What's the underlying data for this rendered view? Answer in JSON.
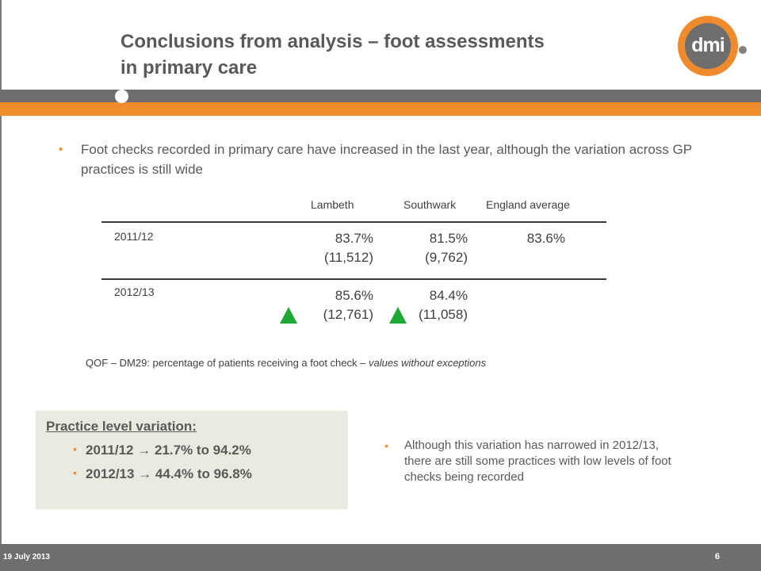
{
  "slide": {
    "title_line1": "Conclusions from analysis – foot assessments",
    "title_line2": "in primary care",
    "logo_text": "dmi",
    "colors": {
      "accent_orange": "#f08c2c",
      "band_grey": "#6e6e6e",
      "increase_arrow": "#1fa834",
      "panel_bg": "#ebeae1"
    }
  },
  "main_bullet": {
    "text": "Foot checks recorded in primary care have increased in the last year, although the variation across GP practices is still wide"
  },
  "table": {
    "columns": [
      "Lambeth",
      "Southwark",
      "England average"
    ],
    "rows": [
      {
        "year": "2011/12",
        "lambeth_pct": "83.7%",
        "lambeth_count": "(11,512)",
        "southwark_pct": "81.5%",
        "southwark_count": "(9,762)",
        "england_pct": "83.6%"
      },
      {
        "year": "2012/13",
        "lambeth_pct": "85.6%",
        "lambeth_count": "(12,761)",
        "southwark_pct": "84.4%",
        "southwark_count": "(11,058)",
        "england_pct": ""
      }
    ],
    "indicator_icon": "green-up-triangle-icon",
    "caption_main": "QOF – DM29: percentage of patients receiving a foot check – ",
    "caption_italic": "values without exceptions"
  },
  "variation_box": {
    "heading": "Practice level variation:",
    "items": [
      "2011/12  21.7% to 94.2%",
      "2012/13  44.4% to 96.8%"
    ],
    "arrow_glyph": "→"
  },
  "side_bullet": {
    "text": "Although this variation has narrowed in 2012/13, there are still some practices with low levels of foot checks being recorded"
  },
  "footer": {
    "date": "19 July 2013",
    "page_number": "6"
  }
}
